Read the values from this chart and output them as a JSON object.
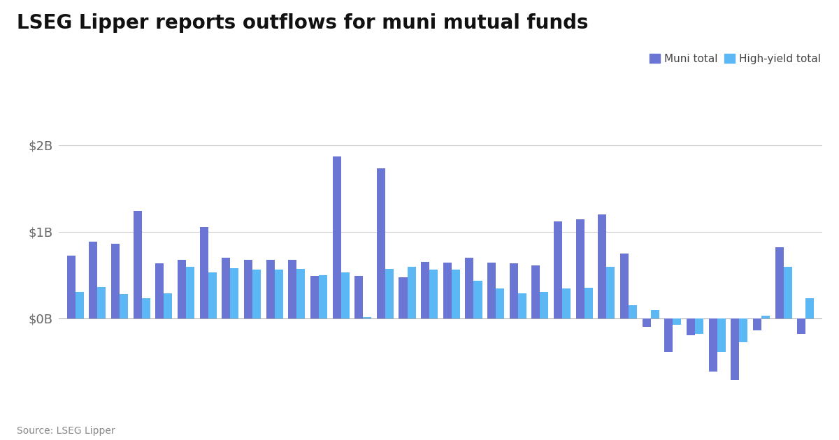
{
  "title": "LSEG Lipper reports outflows for muni mutual funds",
  "source": "Source: LSEG Lipper",
  "muni_color": "#6B76D4",
  "hy_color": "#5BB8F5",
  "background_color": "#ffffff",
  "ylim_min": -950,
  "ylim_max": 2200,
  "yticks": [
    0,
    1000,
    2000
  ],
  "ytick_labels": [
    "$0B",
    "$1B",
    "$2B"
  ],
  "legend_labels": [
    "Muni total",
    "High-yield total"
  ],
  "muni_values": [
    720,
    880,
    860,
    1240,
    630,
    670,
    1050,
    700,
    670,
    670,
    670,
    490,
    1870,
    490,
    1730,
    470,
    650,
    640,
    700,
    640,
    630,
    610,
    1120,
    1140,
    1200,
    750,
    -100,
    -390,
    -200,
    -620,
    -710,
    -140,
    820,
    -180
  ],
  "hy_values": [
    300,
    360,
    280,
    230,
    290,
    590,
    530,
    580,
    560,
    560,
    570,
    500,
    530,
    10,
    570,
    590,
    560,
    560,
    430,
    340,
    290,
    300,
    340,
    350,
    590,
    150,
    90,
    -80,
    -180,
    -390,
    -280,
    30,
    590,
    230
  ]
}
